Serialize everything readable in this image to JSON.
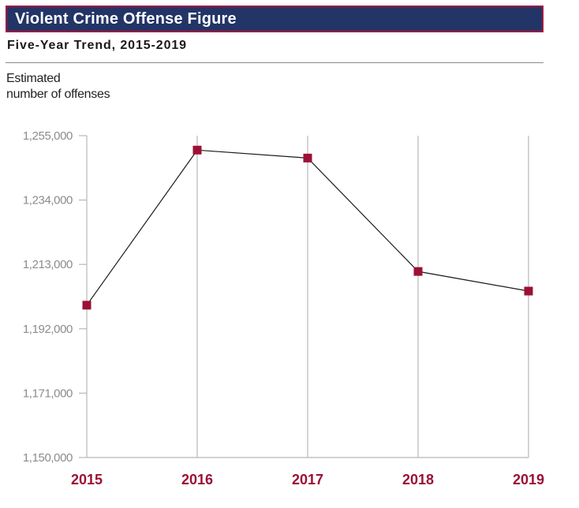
{
  "header": {
    "title": "Violent Crime Offense Figure",
    "subtitle": "Five-Year Trend, 2015-2019"
  },
  "colors": {
    "title_bg": "#233466",
    "title_border": "#a0173e",
    "marker": "#9c1035",
    "year_label": "#9c1035",
    "line": "#1a1a1a",
    "grid": "#b8b8b8",
    "tick_label": "#8c8c8c"
  },
  "chart_data": {
    "type": "line",
    "title": "Violent Crime Offense Figure",
    "subtitle": "Five-Year Trend, 2015-2019",
    "ylabel_lines": [
      "Estimated",
      "number of offenses"
    ],
    "xlabel": "",
    "categories": [
      "2015",
      "2016",
      "2017",
      "2018",
      "2019"
    ],
    "series": [
      {
        "values": [
          1199700,
          1250300,
          1247700,
          1210700,
          1204300
        ]
      }
    ],
    "ylim": [
      1150000,
      1255000
    ],
    "yticks": [
      1150000,
      1171000,
      1192000,
      1213000,
      1234000,
      1255000
    ],
    "ytick_labels": [
      "1,150,000",
      "1,171,000",
      "1,192,000",
      "1,213,000",
      "1,234,000",
      "1,255,000"
    ],
    "grid": "vertical",
    "legend": "none"
  }
}
